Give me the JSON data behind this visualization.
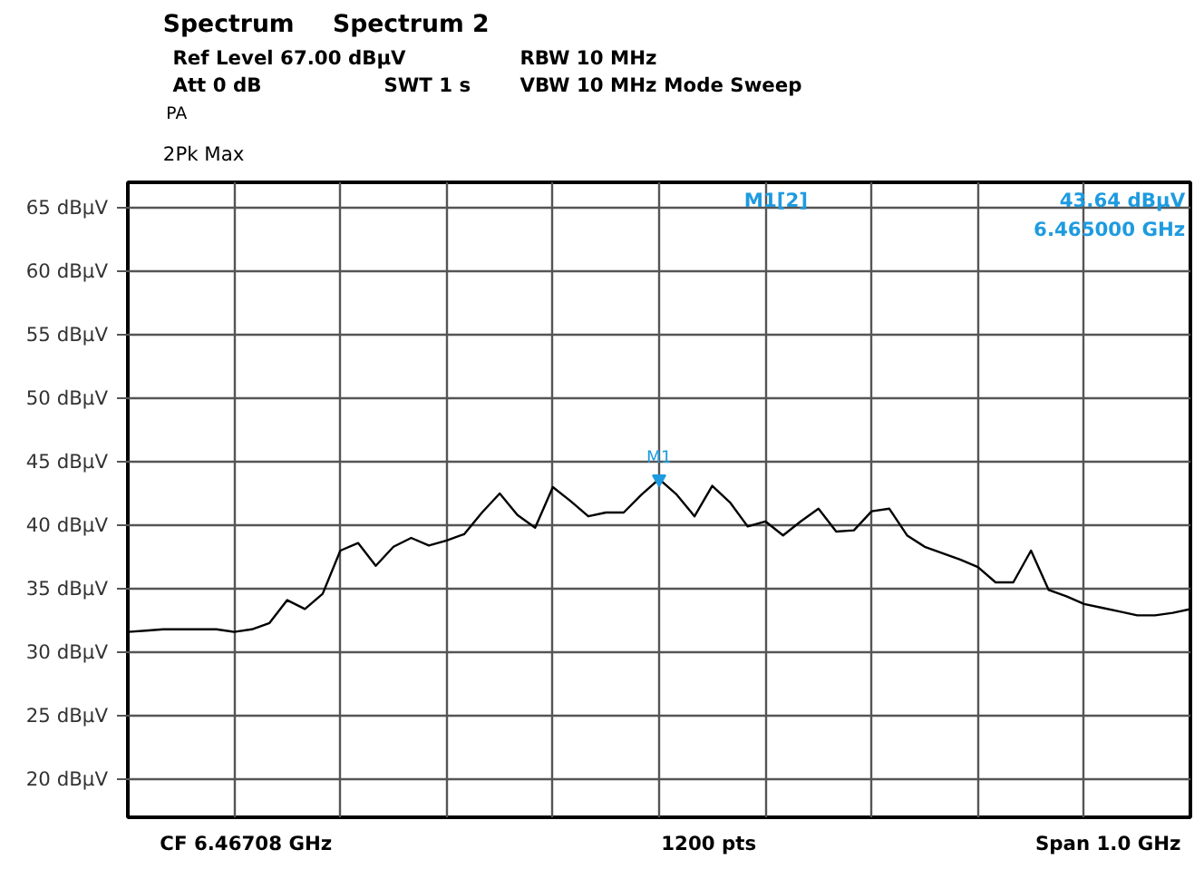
{
  "chart_data": {
    "type": "line",
    "ylim": [
      17,
      67
    ],
    "categories": [
      null,
      null,
      null,
      null,
      null,
      null,
      null,
      null,
      null,
      null,
      null,
      null,
      null,
      null,
      null,
      null,
      null,
      null,
      null,
      null,
      null,
      null,
      null,
      null,
      null,
      null,
      null,
      null,
      null,
      null,
      null,
      null,
      null,
      null,
      null,
      null,
      null,
      null,
      null,
      null,
      null,
      null,
      null,
      null,
      null,
      null,
      null,
      null,
      null,
      null,
      null,
      null,
      null,
      null,
      null,
      null,
      null,
      null,
      null,
      null,
      null
    ],
    "yticks": [
      {
        "value": 20,
        "label": "20 dBµV"
      },
      {
        "value": 25,
        "label": "25 dBµV"
      },
      {
        "value": 30,
        "label": "30 dBµV"
      },
      {
        "value": 35,
        "label": "35 dBµV"
      },
      {
        "value": 40,
        "label": "40 dBµV"
      },
      {
        "value": 45,
        "label": "45 dBµV"
      },
      {
        "value": 50,
        "label": "50 dBµV"
      },
      {
        "value": 55,
        "label": "55 dBµV"
      },
      {
        "value": 60,
        "label": "60 dBµV"
      },
      {
        "value": 65,
        "label": "65 dBµV"
      }
    ],
    "tick_labels": "y",
    "grid": true,
    "line_style": "solid",
    "series": [
      {
        "color": "#000000",
        "values": [
          31.6,
          31.7,
          31.8,
          31.8,
          31.8,
          31.8,
          31.6,
          31.8,
          32.3,
          34.1,
          33.4,
          34.6,
          38.0,
          38.6,
          36.8,
          38.3,
          39.0,
          38.4,
          38.8,
          39.3,
          41.0,
          42.5,
          40.8,
          39.8,
          43.0,
          41.9,
          40.7,
          41.0,
          41.0,
          42.4,
          43.64,
          42.4,
          40.7,
          43.1,
          41.8,
          39.9,
          40.3,
          39.2,
          40.3,
          41.3,
          39.5,
          39.6,
          41.1,
          41.3,
          39.2,
          38.3,
          37.8,
          37.3,
          36.7,
          35.5,
          35.5,
          38.0,
          34.9,
          34.4,
          33.8,
          33.5,
          33.2,
          32.9,
          32.9,
          33.1,
          33.4
        ]
      }
    ],
    "annotations": [
      "Spectrum",
      "Spectrum 2",
      "Ref Level 67.00 dBµV",
      "RBW 10 MHz",
      "Att 0 dB",
      "SWT 1 s",
      "VBW 10 MHz",
      "Mode Sweep",
      "PA",
      "2Pk Max",
      "M1[2]",
      "43.64 dBµV",
      "6.465000 GHz",
      "M1",
      "CF 6.46708 GHz",
      "1200 pts",
      "Span 1.0 GHz"
    ]
  }
}
